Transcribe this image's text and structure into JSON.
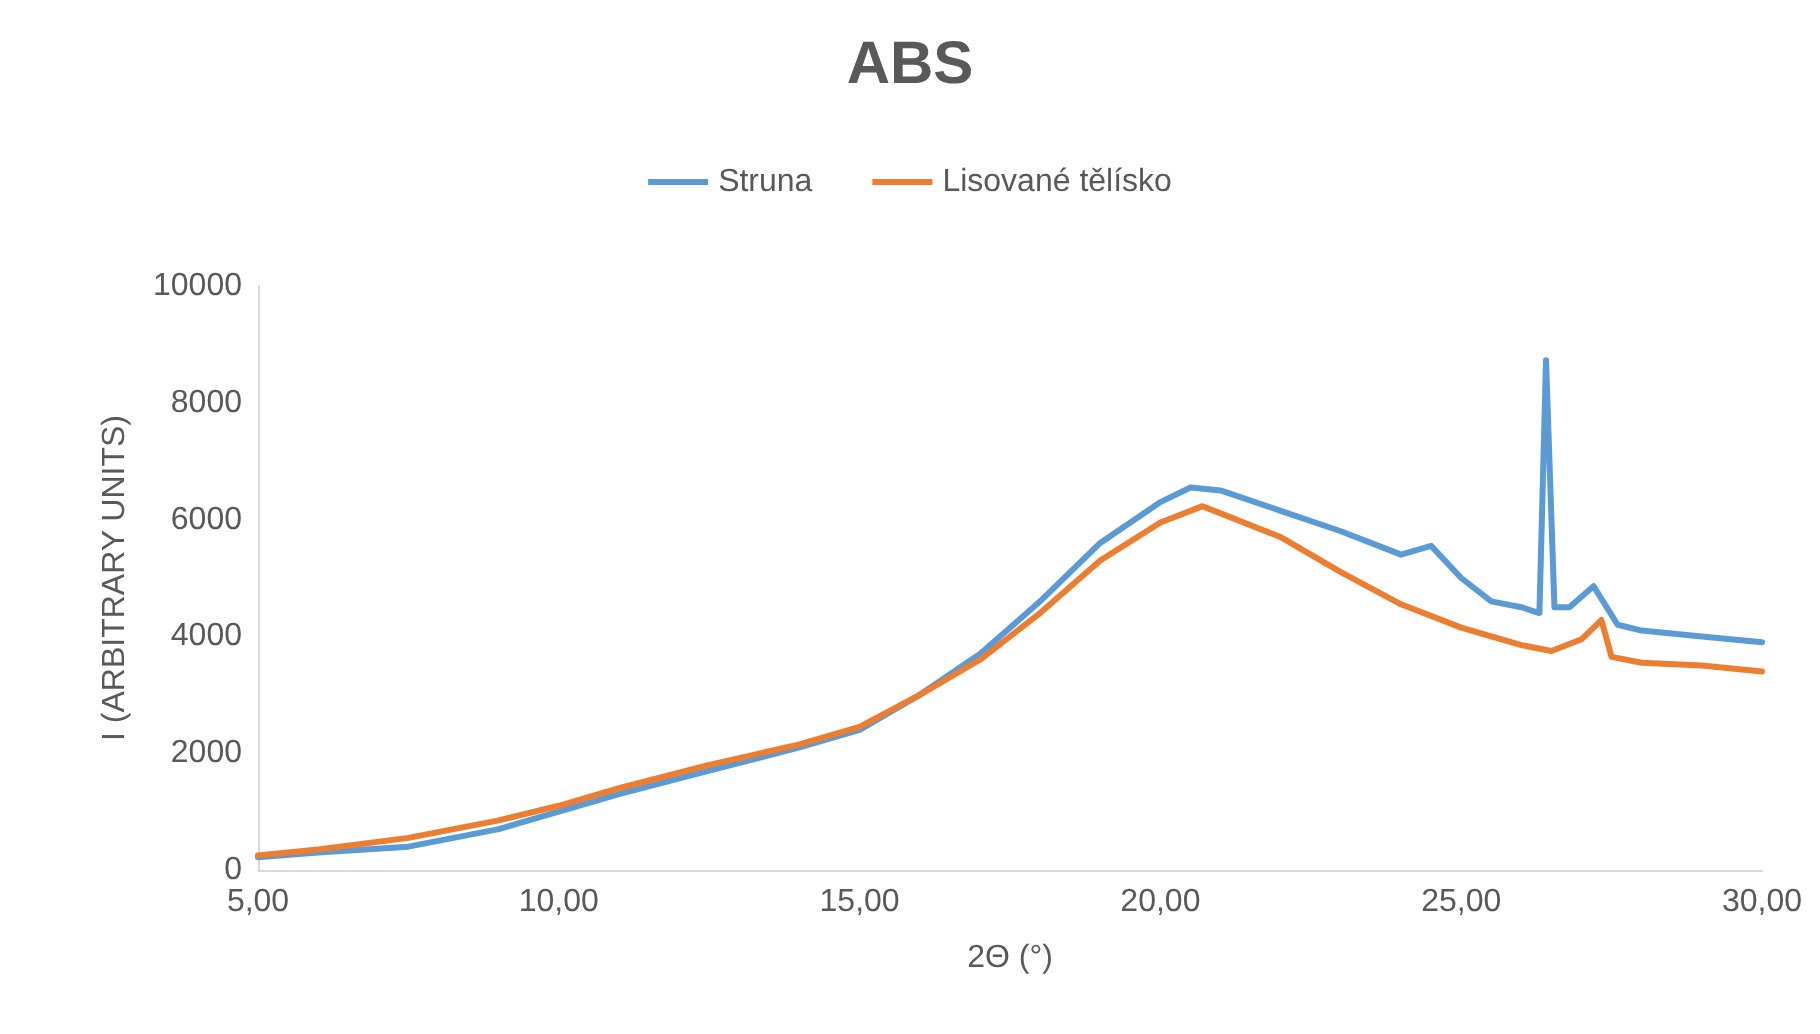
{
  "chart_data": {
    "type": "line",
    "title": "ABS",
    "xlabel": "2Θ (°)",
    "ylabel": "I (ARBITRARY UNITS)",
    "xlim": [
      5,
      30
    ],
    "xticks": [
      {
        "value": 5,
        "label": "5,00"
      },
      {
        "value": 10,
        "label": "10,00"
      },
      {
        "value": 15,
        "label": "15,00"
      },
      {
        "value": 20,
        "label": "20,00"
      },
      {
        "value": 25,
        "label": "25,00"
      },
      {
        "value": 30,
        "label": "30,00"
      }
    ],
    "ylim": [
      0,
      10000
    ],
    "yticks": [
      0,
      2000,
      4000,
      6000,
      8000,
      10000
    ],
    "grid": false,
    "legend": "top",
    "marker": "none",
    "line_style": "solid",
    "series": [
      {
        "name": "Struna",
        "color": "#5b9bd5",
        "x": [
          5,
          6,
          7.5,
          9,
          10,
          11,
          12.5,
          14,
          15,
          16,
          17,
          18,
          19,
          20,
          20.5,
          21,
          22,
          23,
          24,
          24.5,
          25,
          25.5,
          26,
          26.3,
          26.41,
          26.55,
          26.8,
          27.2,
          27.6,
          28,
          29,
          30
        ],
        "values": [
          220,
          300,
          400,
          700,
          1000,
          1300,
          1700,
          2100,
          2400,
          3000,
          3700,
          4600,
          5600,
          6300,
          6550,
          6500,
          6150,
          5800,
          5400,
          5550,
          5000,
          4600,
          4500,
          4400,
          8730,
          4500,
          4500,
          4860,
          4200,
          4100,
          4000,
          3900
        ]
      },
      {
        "name": "Lisované tělísko",
        "color": "#ed7d31",
        "x": [
          5,
          6,
          7.5,
          9,
          10,
          11,
          12.5,
          14,
          15,
          16,
          17,
          18,
          19,
          20,
          20.7,
          22,
          23,
          24,
          25,
          26,
          26.5,
          27,
          27.33,
          27.5,
          28,
          29,
          30
        ],
        "values": [
          250,
          350,
          550,
          850,
          1100,
          1400,
          1800,
          2150,
          2450,
          3000,
          3600,
          4400,
          5300,
          5950,
          6230,
          5700,
          5100,
          4550,
          4150,
          3850,
          3750,
          3950,
          4280,
          3650,
          3550,
          3500,
          3400
        ]
      }
    ]
  }
}
